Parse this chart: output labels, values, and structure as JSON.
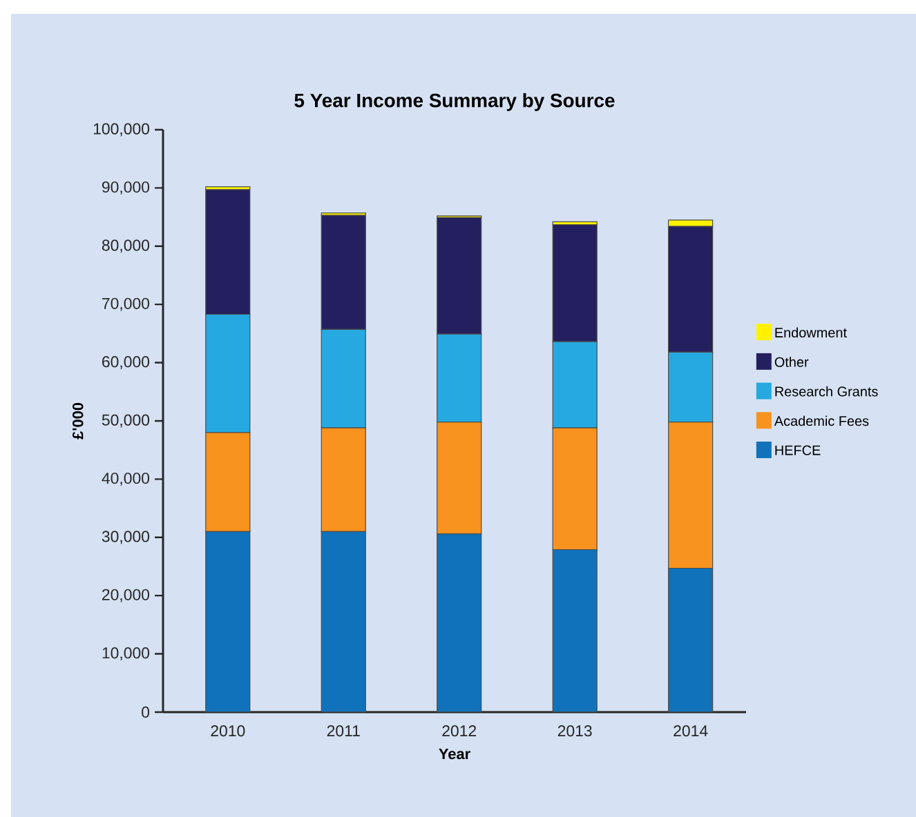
{
  "chart_data": {
    "type": "bar",
    "title": "5 Year Income Summary by Source",
    "xlabel": "Year",
    "ylabel": "£'000",
    "categories": [
      "2010",
      "2011",
      "2012",
      "2013",
      "2014"
    ],
    "stacked": true,
    "series": [
      {
        "name": "HEFCE",
        "color": "#1072ba",
        "values": [
          31000,
          31000,
          30600,
          27900,
          24700
        ]
      },
      {
        "name": "Academic Fees",
        "color": "#f7931e",
        "values": [
          17000,
          17800,
          19200,
          20900,
          25100
        ]
      },
      {
        "name": "Research Grants",
        "color": "#25a9e0",
        "values": [
          20300,
          16900,
          15100,
          14800,
          12000
        ]
      },
      {
        "name": "Other",
        "color": "#241f5e",
        "values": [
          21400,
          19600,
          20000,
          20100,
          21600
        ]
      },
      {
        "name": "Endowment",
        "color": "#fff200",
        "values": [
          500,
          400,
          300,
          500,
          1100
        ]
      }
    ],
    "ylim": [
      0,
      100000
    ],
    "yticks": [
      0,
      {
        "value": 10000,
        "label": "10,000"
      },
      {
        "value": 20000,
        "label": "20,000"
      },
      {
        "value": 30000,
        "label": "30,000"
      },
      {
        "value": 40000,
        "label": "40,000"
      },
      {
        "value": 50000,
        "label": "50,000"
      },
      {
        "value": 60000,
        "label": "60,000"
      },
      {
        "value": 70000,
        "label": "70,000"
      },
      {
        "value": 80000,
        "label": "80,000"
      },
      {
        "value": 90000,
        "label": "90,000"
      },
      {
        "value": 100000,
        "label": "100,000"
      }
    ],
    "legend": "right"
  }
}
